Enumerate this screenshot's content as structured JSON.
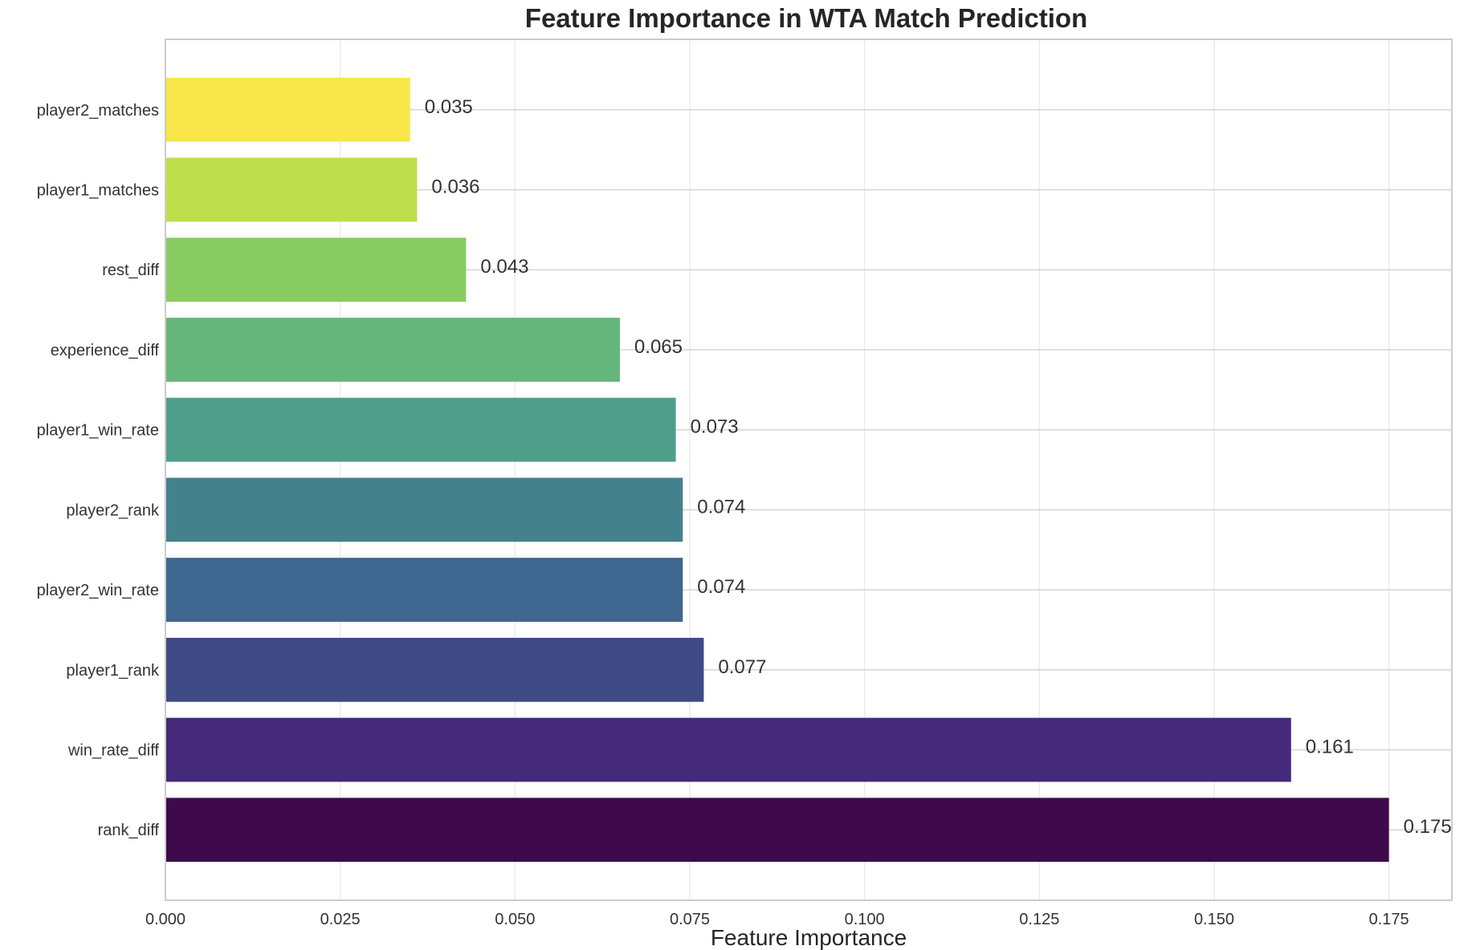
{
  "chart_data": {
    "type": "bar",
    "orientation": "horizontal",
    "title": "Feature Importance in WTA Match Prediction",
    "xlabel": "Feature Importance",
    "ylabel": "",
    "categories": [
      "rank_diff",
      "win_rate_diff",
      "player1_rank",
      "player2_win_rate",
      "player2_rank",
      "player1_win_rate",
      "experience_diff",
      "rest_diff",
      "player1_matches",
      "player2_matches"
    ],
    "values": [
      0.175,
      0.161,
      0.077,
      0.074,
      0.074,
      0.073,
      0.065,
      0.043,
      0.036,
      0.035
    ],
    "value_labels": [
      "0.175",
      "0.161",
      "0.077",
      "0.074",
      "0.074",
      "0.073",
      "0.065",
      "0.043",
      "0.036",
      "0.035"
    ],
    "colors": [
      "#3e0a4c",
      "#45297a",
      "#404a87",
      "#3f6790",
      "#43818d",
      "#4f9e8a",
      "#65b67b",
      "#88cc62",
      "#bedf4b",
      "#f8e64b"
    ],
    "xlim": [
      0,
      0.184
    ],
    "xticks": [
      0,
      0.025,
      0.05,
      0.075,
      0.1,
      0.125,
      0.15,
      0.175
    ],
    "xtick_labels": [
      "0.000",
      "0.025",
      "0.050",
      "0.075",
      "0.100",
      "0.125",
      "0.150",
      "0.175"
    ],
    "grid": true
  }
}
